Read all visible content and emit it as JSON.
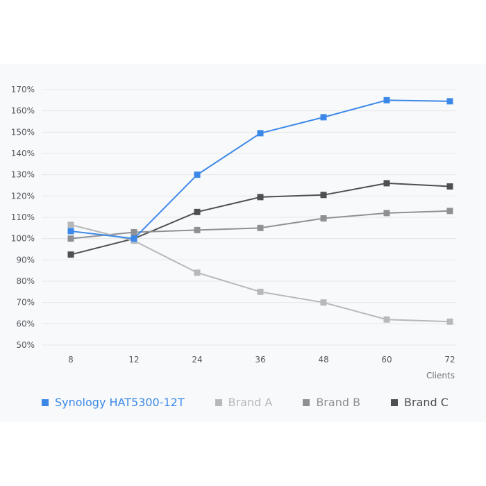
{
  "chart_data": {
    "type": "line",
    "title": "",
    "xlabel": "Clients",
    "ylabel": "",
    "categories": [
      "8",
      "12",
      "24",
      "36",
      "48",
      "60",
      "72"
    ],
    "y_ticks": [
      "50%",
      "60%",
      "70%",
      "80%",
      "90%",
      "100%",
      "110%",
      "120%",
      "130%",
      "140%",
      "150%",
      "160%",
      "170%"
    ],
    "ylim": [
      50,
      170
    ],
    "grid": true,
    "legend_position": "bottom",
    "series": [
      {
        "name": "Synology HAT5300-12T",
        "color": "#3b88e8",
        "values": [
          103.5,
          100,
          130,
          149.5,
          157,
          165,
          164.5
        ]
      },
      {
        "name": "Brand A",
        "color": "#b6b8ba",
        "values": [
          106.5,
          99,
          84,
          75,
          70,
          62,
          61
        ]
      },
      {
        "name": "Brand B",
        "color": "#8e9194",
        "values": [
          100,
          103,
          104,
          105,
          109.5,
          112,
          113
        ]
      },
      {
        "name": "Brand C",
        "color": "#4d5053",
        "values": [
          92.5,
          100,
          112.5,
          119.5,
          120.5,
          126,
          124.5
        ]
      }
    ]
  }
}
